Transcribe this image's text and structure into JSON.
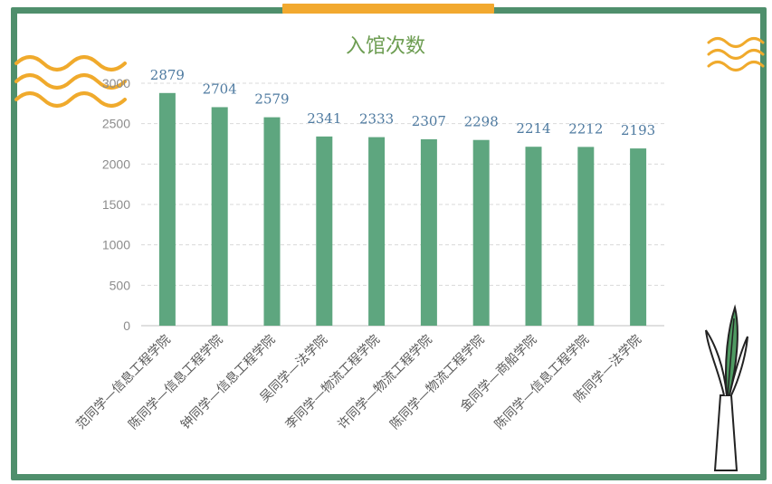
{
  "colors": {
    "frame": "#4f8f6c",
    "accent_bar": "#f2a92f",
    "bar": "#5ea67f",
    "title": "#6d9d52",
    "data_label": "#4e7aa0",
    "tick_label": "#8c8c8c",
    "gridline": "#d9d9d9",
    "wave": "#f0aa2c",
    "plant": "#4f9a62"
  },
  "icons": [
    "wave-decoration-icon",
    "plant-vase-icon"
  ],
  "chart_data": {
    "type": "bar",
    "title": "入馆次数",
    "categories": [
      "范同学—信息工程学院",
      "陈同学—信息工程学院",
      "钟同学—信息工程学院",
      "吴同学—法学院",
      "李同学—物流工程学院",
      "许同学—物流工程学院",
      "陈同学—物流工程学院",
      "金同学—商船学院",
      "陈同学—信息工程学院",
      "陈同学—法学院"
    ],
    "values": [
      2879,
      2704,
      2579,
      2341,
      2333,
      2307,
      2298,
      2214,
      2212,
      2193
    ],
    "data_labels": [
      "2879",
      "2704",
      "2579",
      "2341",
      "2333",
      "2307",
      "2298",
      "2214",
      "2212",
      "2193"
    ],
    "yticks": [
      0,
      500,
      1000,
      1500,
      2000,
      2500,
      3000
    ],
    "ytick_labels": [
      "0",
      "500",
      "1000",
      "1500",
      "2000",
      "2500",
      "3000"
    ],
    "ylim": [
      0,
      3000
    ],
    "grid": true,
    "legend": "none",
    "xlabel": "",
    "ylabel": ""
  }
}
